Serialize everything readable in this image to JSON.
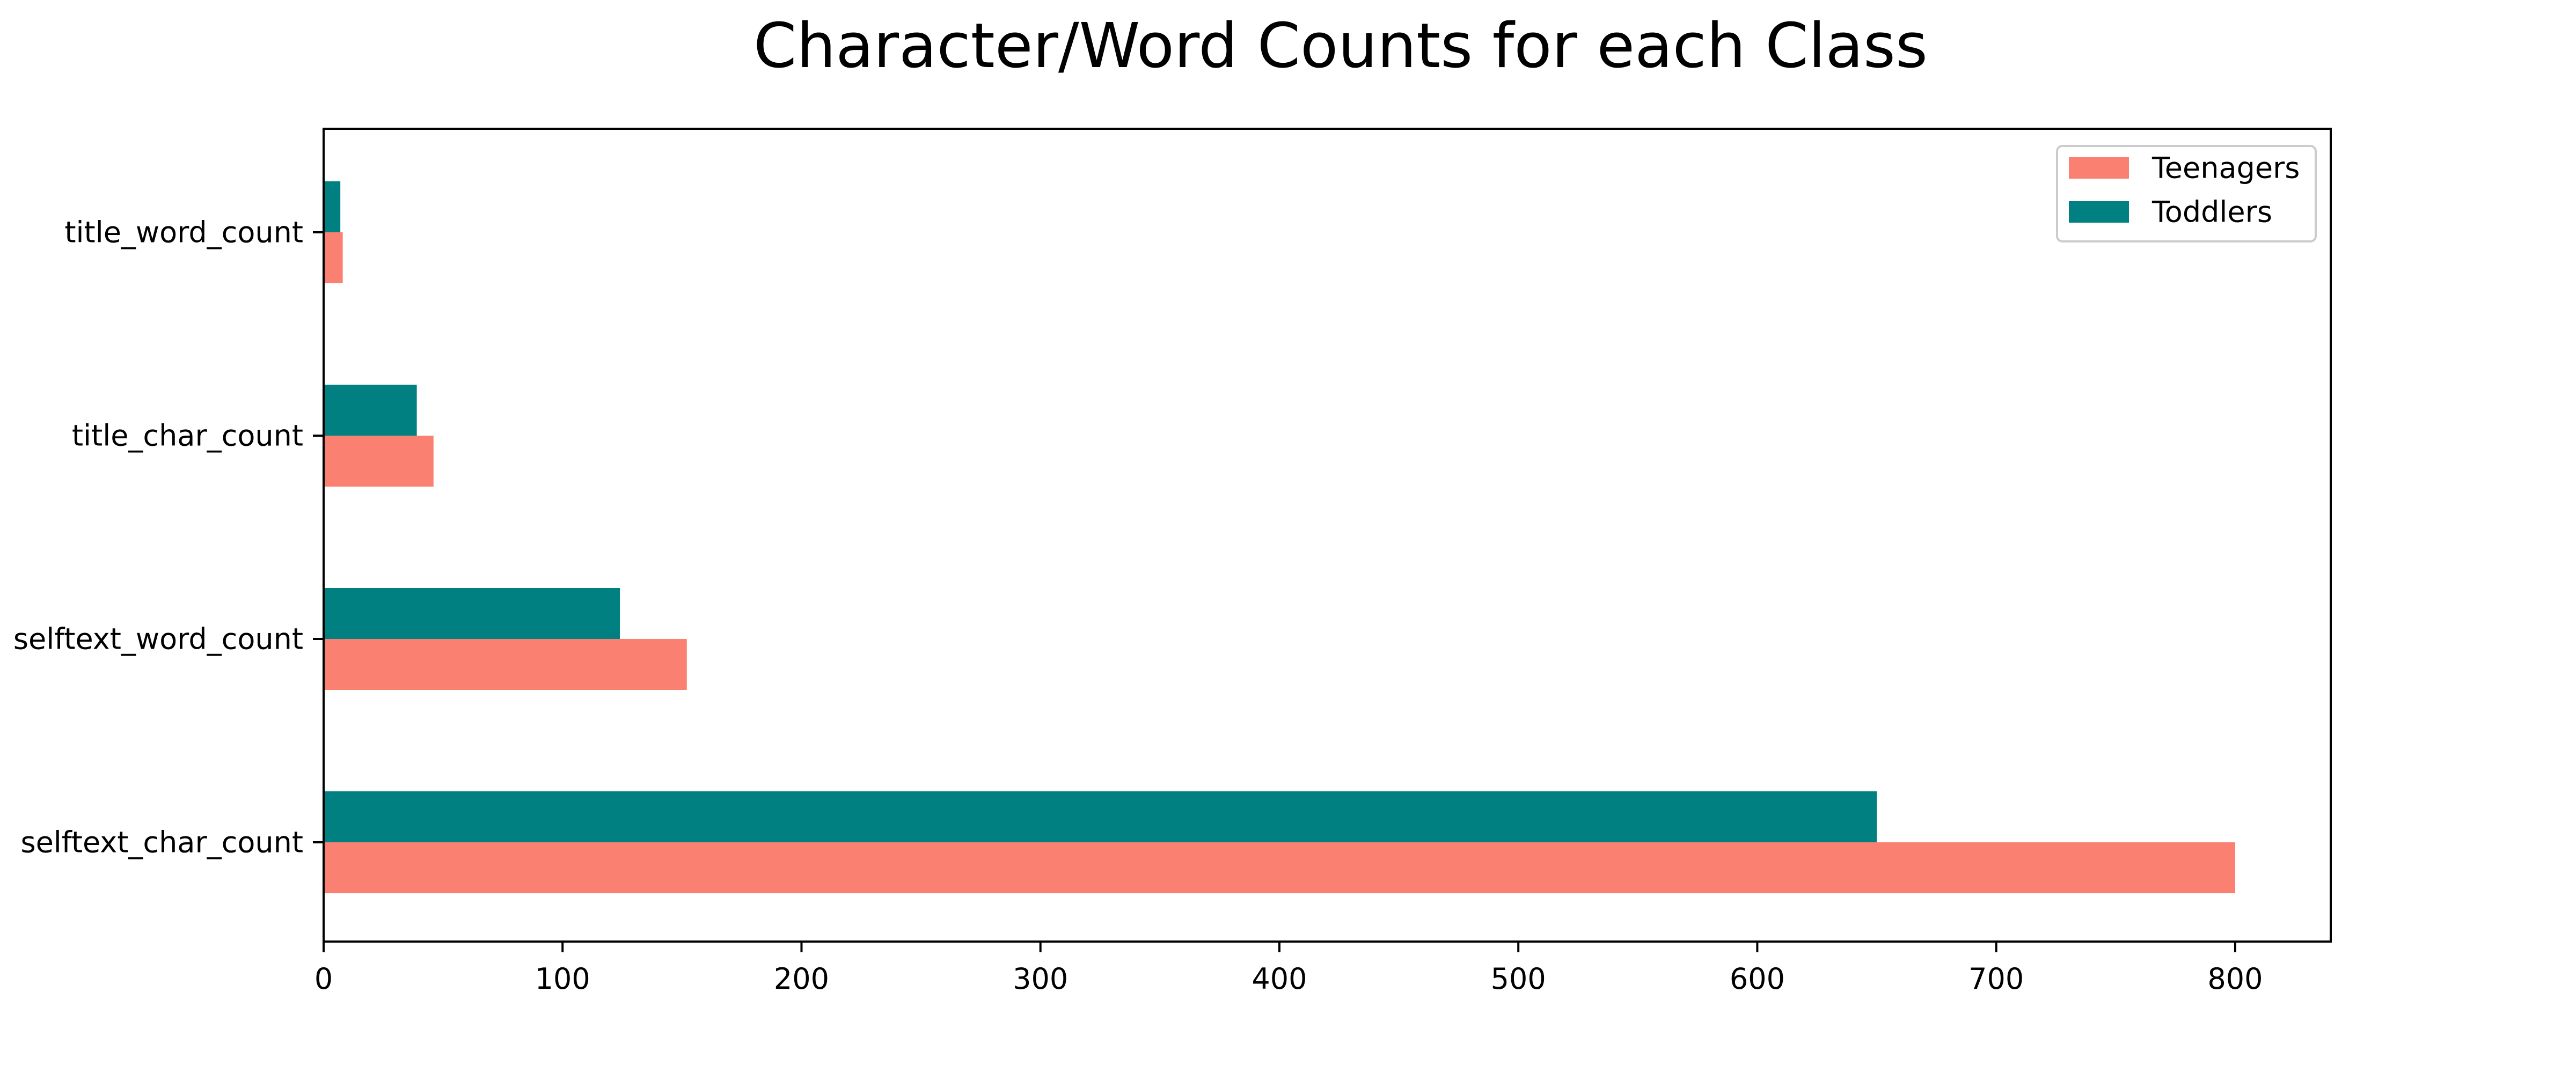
{
  "chart_data": {
    "type": "bar",
    "orientation": "horizontal",
    "title": "Character/Word Counts for each Class",
    "xlabel": "",
    "ylabel": "",
    "categories": [
      "selftext_char_count",
      "selftext_word_count",
      "title_char_count",
      "title_word_count"
    ],
    "series": [
      {
        "name": "Teenagers",
        "color": "#fa8072",
        "values": [
          800,
          152,
          46,
          8
        ]
      },
      {
        "name": "Toddlers",
        "color": "#008080",
        "values": [
          650,
          124,
          39,
          7
        ]
      }
    ],
    "xlim": [
      0,
      840
    ],
    "xticks": [
      0,
      100,
      200,
      300,
      400,
      500,
      600,
      700,
      800
    ],
    "grid": false,
    "legend_position": "top-right"
  }
}
